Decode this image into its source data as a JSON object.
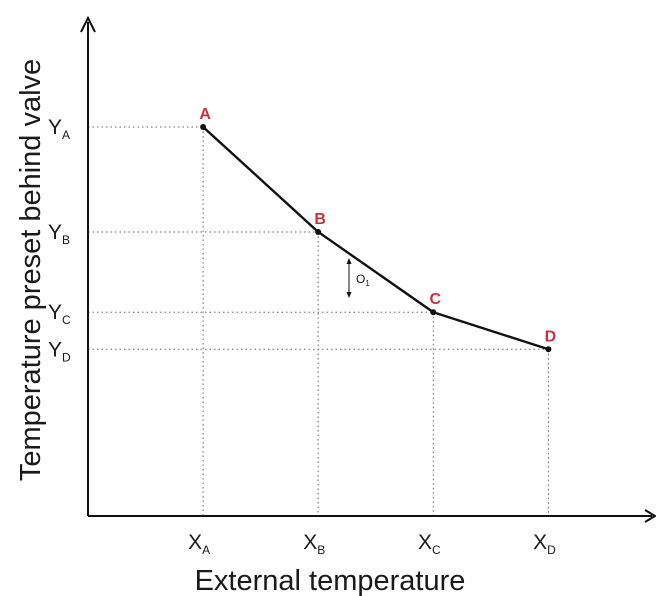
{
  "chart_data": {
    "type": "line",
    "xlabel": "External temperature",
    "ylabel": "Temperature preset behind valve",
    "x_ticks": [
      {
        "main": "X",
        "sub": "A"
      },
      {
        "main": "X",
        "sub": "B"
      },
      {
        "main": "X",
        "sub": "C"
      },
      {
        "main": "X",
        "sub": "D"
      }
    ],
    "y_ticks": [
      {
        "main": "Y",
        "sub": "A"
      },
      {
        "main": "Y",
        "sub": "B"
      },
      {
        "main": "Y",
        "sub": "C"
      },
      {
        "main": "Y",
        "sub": "D"
      }
    ],
    "points": [
      {
        "label": "A",
        "x": 1,
        "y": 6.3
      },
      {
        "label": "B",
        "x": 2,
        "y": 4.6
      },
      {
        "label": "C",
        "x": 3,
        "y": 3.3
      },
      {
        "label": "D",
        "x": 4,
        "y": 2.7
      }
    ],
    "xlim": [
      0,
      4.9
    ],
    "ylim": [
      0,
      8.0
    ],
    "annotation": {
      "main": "O",
      "sub": "1"
    },
    "grid": false,
    "colors": {
      "line": "#111111",
      "point_label": "#c8323c",
      "axis": "#111111"
    }
  }
}
